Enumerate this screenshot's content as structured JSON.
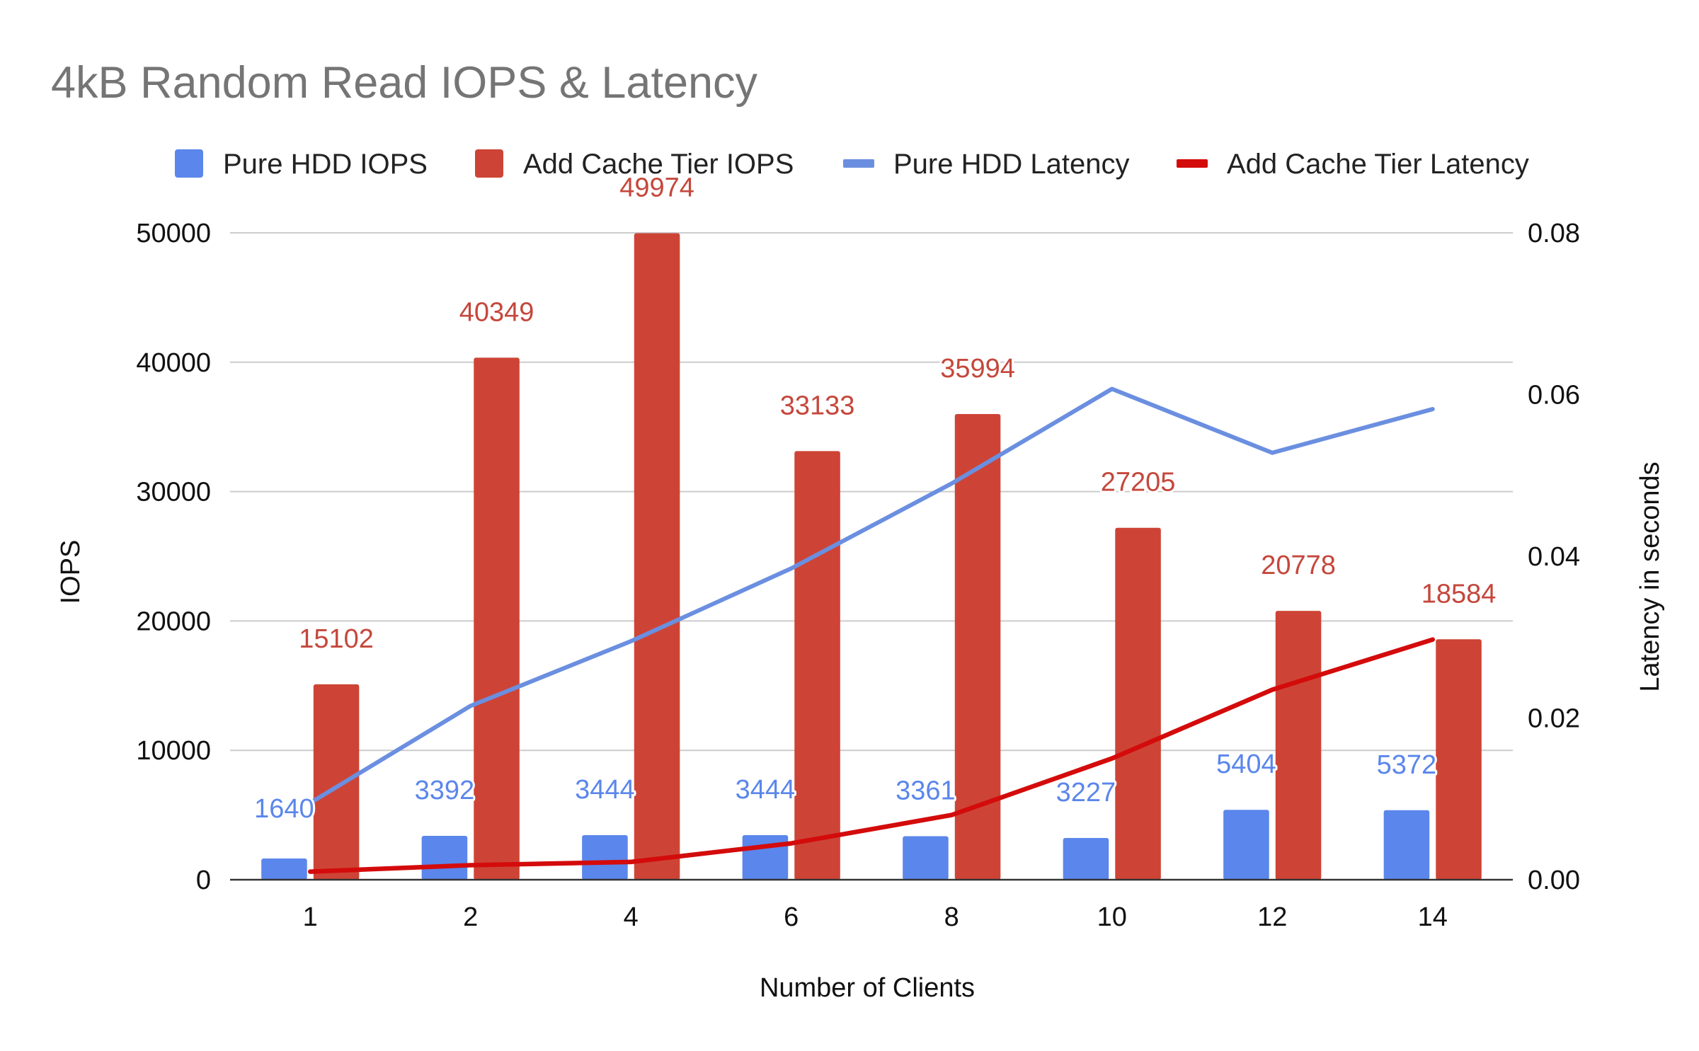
{
  "chart_data": {
    "type": "bar",
    "title": "4kB Random Read IOPS & Latency",
    "xlabel": "Number of Clients",
    "ylabel": "IOPS",
    "y2label": "Latency in seconds",
    "categories": [
      "1",
      "2",
      "4",
      "6",
      "8",
      "10",
      "12",
      "14"
    ],
    "ylim": [
      0,
      50000
    ],
    "y2lim": [
      0,
      0.08
    ],
    "yticks": [
      "0",
      "10000",
      "20000",
      "30000",
      "40000",
      "50000"
    ],
    "y2ticks": [
      "0.00",
      "0.02",
      "0.04",
      "0.06",
      "0.08"
    ],
    "grid": true,
    "legend_position": "top",
    "series": [
      {
        "name": "Pure HDD IOPS",
        "type": "bar",
        "axis": "left",
        "color": "#5b86eb",
        "values": [
          1640,
          3392,
          3444,
          3444,
          3361,
          3227,
          5404,
          5372
        ],
        "labels": [
          "1640",
          "3392",
          "3444",
          "3444",
          "3361",
          "3227",
          "5404",
          "5372"
        ]
      },
      {
        "name": "Add Cache Tier IOPS",
        "type": "bar",
        "axis": "left",
        "color": "#cd4436",
        "values": [
          15102,
          40349,
          49974,
          33133,
          35994,
          27205,
          20778,
          18584
        ],
        "labels": [
          "15102",
          "40349",
          "49974",
          "33133",
          "35994",
          "27205",
          "20778",
          "18584"
        ]
      },
      {
        "name": "Pure HDD Latency",
        "type": "line",
        "axis": "right",
        "color": "#6b8fe0",
        "values": [
          0.0095,
          0.0215,
          0.0295,
          0.0385,
          0.049,
          0.0607,
          0.0528,
          0.0582
        ]
      },
      {
        "name": "Add Cache Tier Latency",
        "type": "line",
        "axis": "right",
        "color": "#d40b0b",
        "values": [
          0.001,
          0.0018,
          0.0022,
          0.0045,
          0.008,
          0.015,
          0.0235,
          0.0297
        ]
      }
    ]
  }
}
